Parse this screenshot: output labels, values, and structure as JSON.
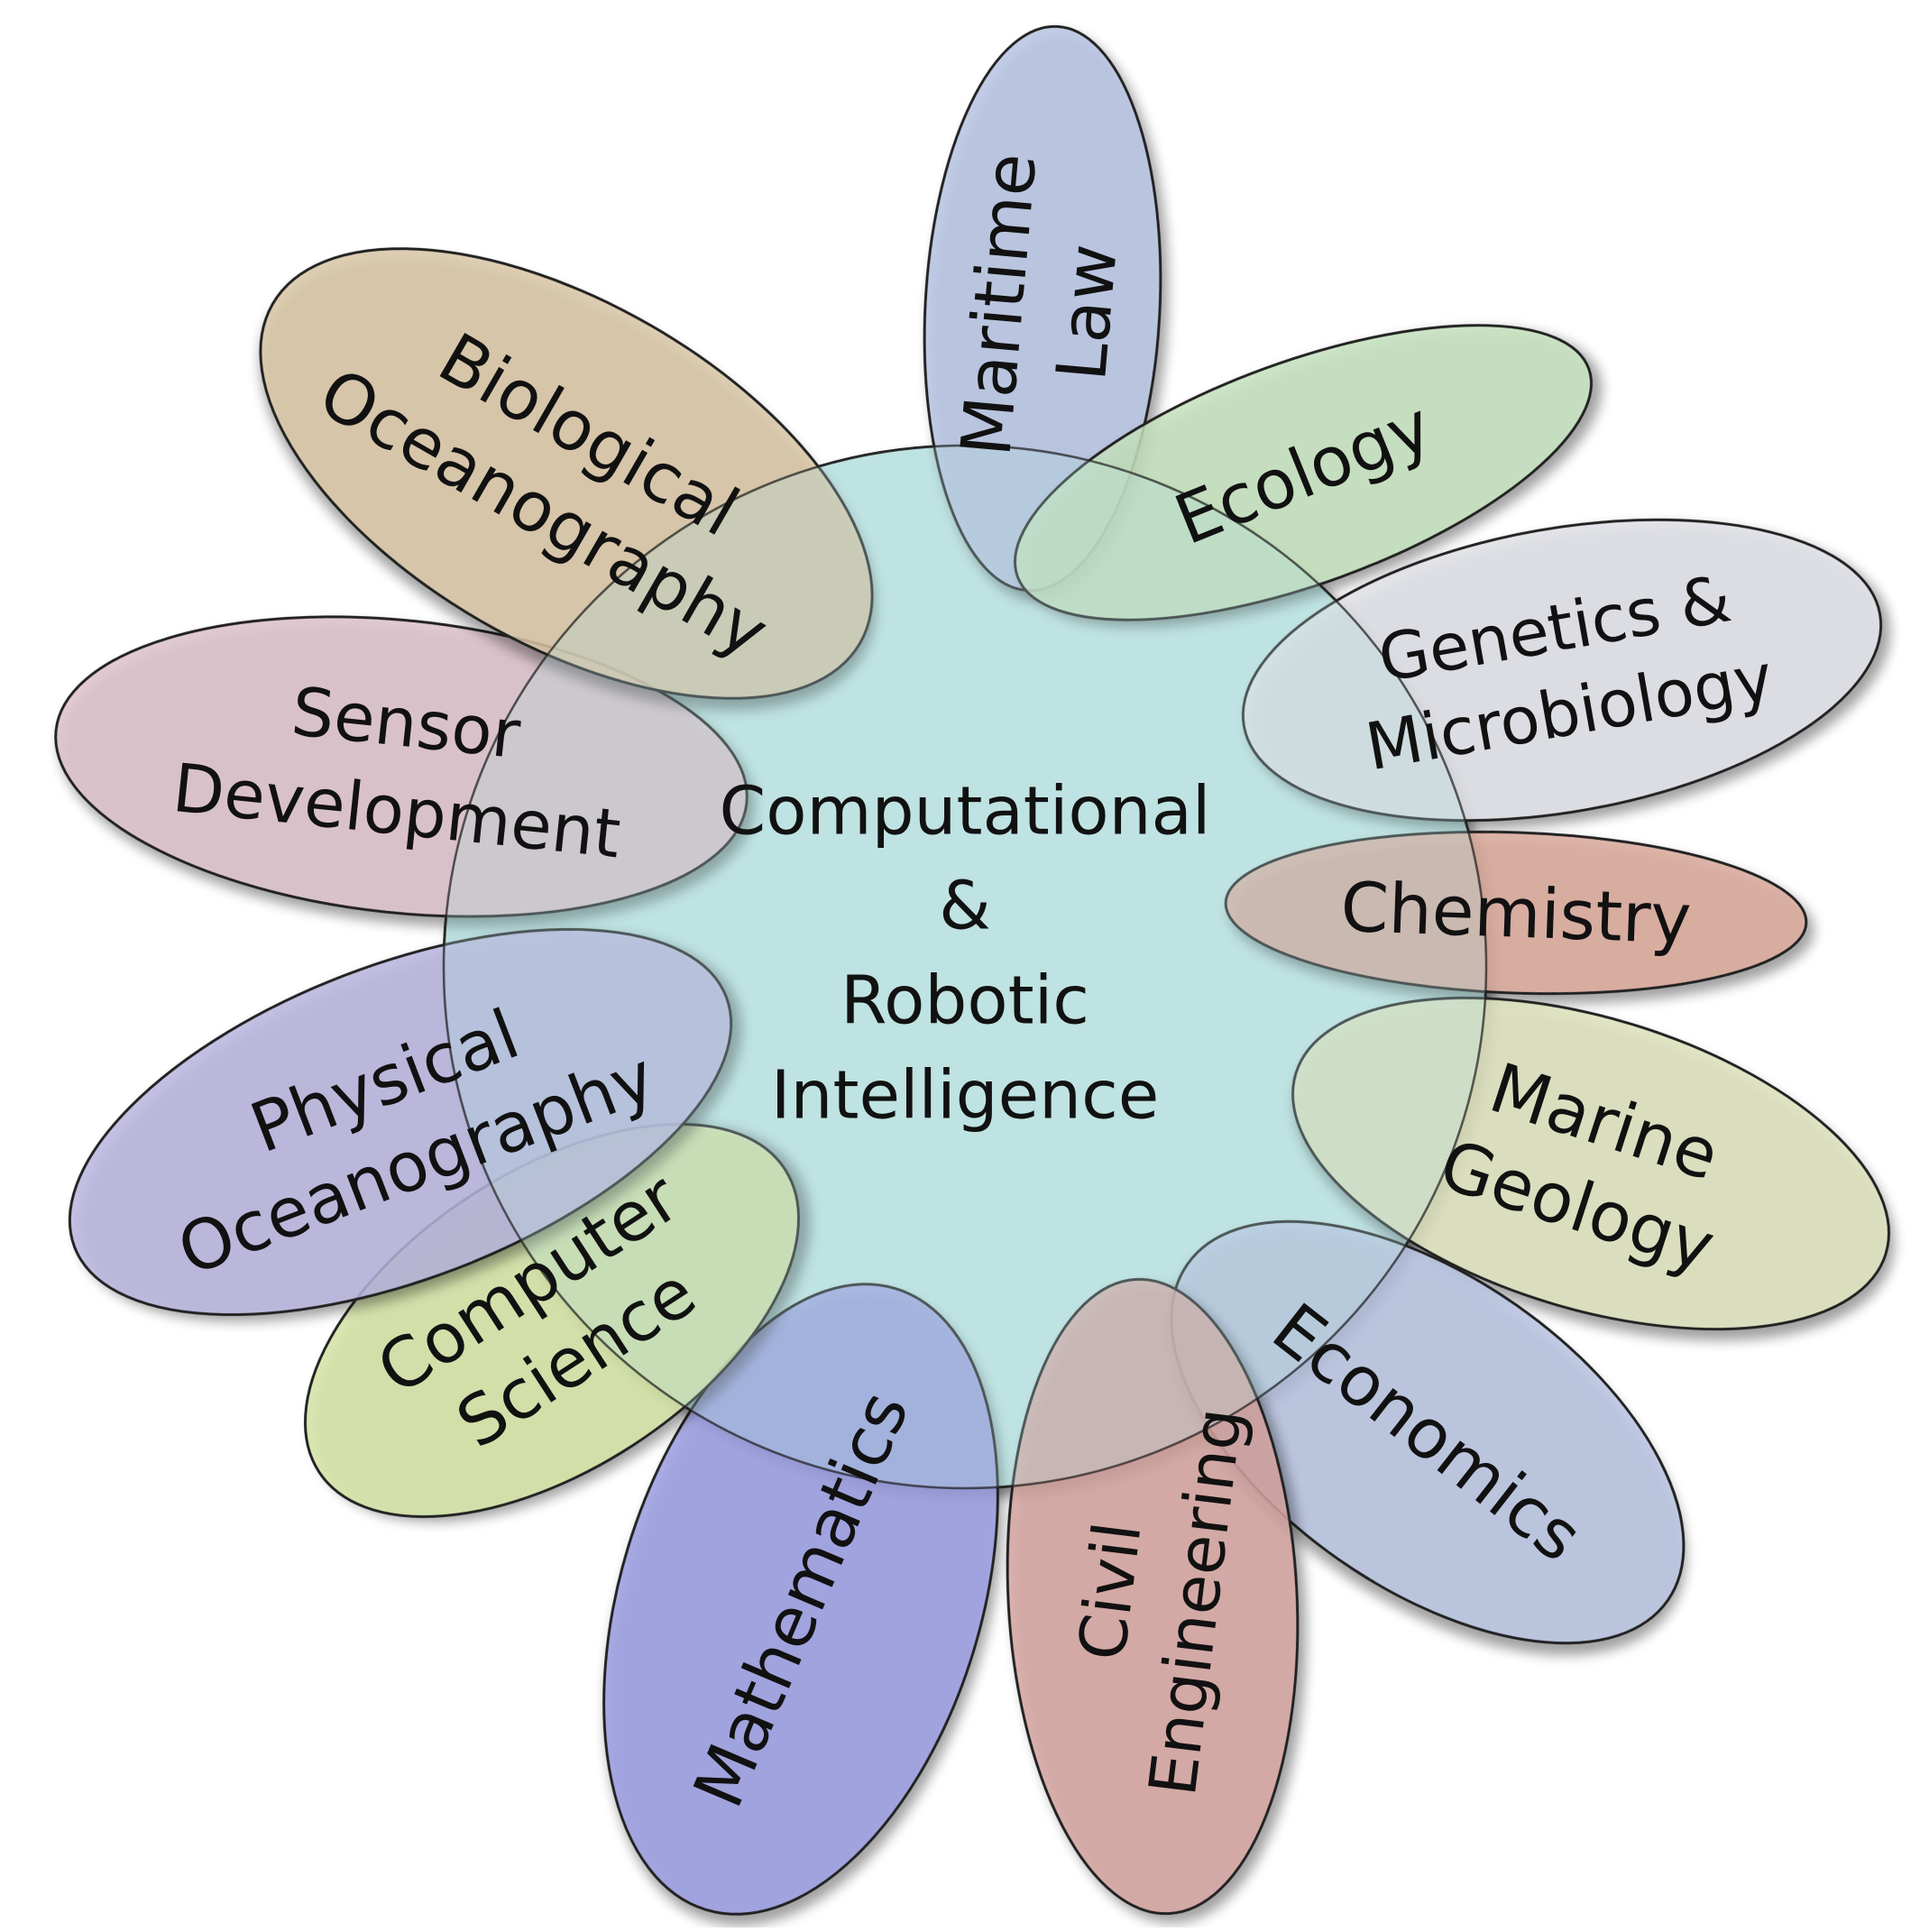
{
  "center": {
    "lines": [
      "Computational",
      "&",
      "Robotic",
      "Intelligence"
    ],
    "fill": "#bfe3e2"
  },
  "petals": [
    {
      "id": "maritime-law",
      "lines": [
        "Maritime",
        "Law"
      ],
      "fill": "#b6c3e3"
    },
    {
      "id": "ecology",
      "lines": [
        "Ecology"
      ],
      "fill": "#c4e2bd"
    },
    {
      "id": "genetics-microbiology",
      "lines": [
        "Genetics &",
        "Microbiology"
      ],
      "fill": "#dfe1e6"
    },
    {
      "id": "chemistry",
      "lines": [
        "Chemistry"
      ],
      "fill": "#d9a89a"
    },
    {
      "id": "marine-geology",
      "lines": [
        "Marine",
        "Geology"
      ],
      "fill": "#dde2bc"
    },
    {
      "id": "economics",
      "lines": [
        "Economics"
      ],
      "fill": "#b8c3e0"
    },
    {
      "id": "civil-engineering",
      "lines": [
        "Civil",
        "Engineering"
      ],
      "fill": "#d4a3a0"
    },
    {
      "id": "mathematics",
      "lines": [
        "Mathematics"
      ],
      "fill": "#9a9ce0"
    },
    {
      "id": "computer-science",
      "lines": [
        "Computer",
        "Science"
      ],
      "fill": "#d3e3a3"
    },
    {
      "id": "physical-oceanography",
      "lines": [
        "Physical",
        "Oceanography"
      ],
      "fill": "#b8b4de"
    },
    {
      "id": "sensor-development",
      "lines": [
        "Sensor",
        "Development"
      ],
      "fill": "#dcc0ca"
    },
    {
      "id": "biological-oceanography",
      "lines": [
        "Biological",
        "Oceanography"
      ],
      "fill": "#d8c4a3"
    }
  ]
}
